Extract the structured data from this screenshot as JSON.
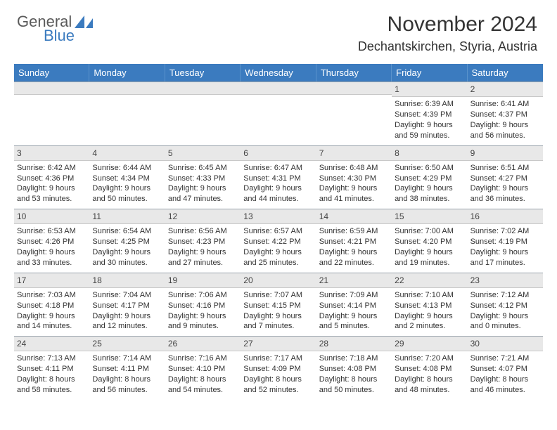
{
  "logo": {
    "main": "General",
    "sub": "Blue"
  },
  "title": "November 2024",
  "location": "Dechantskirchen, Styria, Austria",
  "brand_color": "#3b7bbf",
  "header_text_color": "#ffffff",
  "daynum_bg": "#e8e8e8",
  "week_border": "#9aa4ad",
  "dayNames": [
    "Sunday",
    "Monday",
    "Tuesday",
    "Wednesday",
    "Thursday",
    "Friday",
    "Saturday"
  ],
  "weeks": [
    [
      {
        "n": "",
        "sr": "",
        "ss": "",
        "dl": ""
      },
      {
        "n": "",
        "sr": "",
        "ss": "",
        "dl": ""
      },
      {
        "n": "",
        "sr": "",
        "ss": "",
        "dl": ""
      },
      {
        "n": "",
        "sr": "",
        "ss": "",
        "dl": ""
      },
      {
        "n": "",
        "sr": "",
        "ss": "",
        "dl": ""
      },
      {
        "n": "1",
        "sr": "Sunrise: 6:39 AM",
        "ss": "Sunset: 4:39 PM",
        "dl": "Daylight: 9 hours and 59 minutes."
      },
      {
        "n": "2",
        "sr": "Sunrise: 6:41 AM",
        "ss": "Sunset: 4:37 PM",
        "dl": "Daylight: 9 hours and 56 minutes."
      }
    ],
    [
      {
        "n": "3",
        "sr": "Sunrise: 6:42 AM",
        "ss": "Sunset: 4:36 PM",
        "dl": "Daylight: 9 hours and 53 minutes."
      },
      {
        "n": "4",
        "sr": "Sunrise: 6:44 AM",
        "ss": "Sunset: 4:34 PM",
        "dl": "Daylight: 9 hours and 50 minutes."
      },
      {
        "n": "5",
        "sr": "Sunrise: 6:45 AM",
        "ss": "Sunset: 4:33 PM",
        "dl": "Daylight: 9 hours and 47 minutes."
      },
      {
        "n": "6",
        "sr": "Sunrise: 6:47 AM",
        "ss": "Sunset: 4:31 PM",
        "dl": "Daylight: 9 hours and 44 minutes."
      },
      {
        "n": "7",
        "sr": "Sunrise: 6:48 AM",
        "ss": "Sunset: 4:30 PM",
        "dl": "Daylight: 9 hours and 41 minutes."
      },
      {
        "n": "8",
        "sr": "Sunrise: 6:50 AM",
        "ss": "Sunset: 4:29 PM",
        "dl": "Daylight: 9 hours and 38 minutes."
      },
      {
        "n": "9",
        "sr": "Sunrise: 6:51 AM",
        "ss": "Sunset: 4:27 PM",
        "dl": "Daylight: 9 hours and 36 minutes."
      }
    ],
    [
      {
        "n": "10",
        "sr": "Sunrise: 6:53 AM",
        "ss": "Sunset: 4:26 PM",
        "dl": "Daylight: 9 hours and 33 minutes."
      },
      {
        "n": "11",
        "sr": "Sunrise: 6:54 AM",
        "ss": "Sunset: 4:25 PM",
        "dl": "Daylight: 9 hours and 30 minutes."
      },
      {
        "n": "12",
        "sr": "Sunrise: 6:56 AM",
        "ss": "Sunset: 4:23 PM",
        "dl": "Daylight: 9 hours and 27 minutes."
      },
      {
        "n": "13",
        "sr": "Sunrise: 6:57 AM",
        "ss": "Sunset: 4:22 PM",
        "dl": "Daylight: 9 hours and 25 minutes."
      },
      {
        "n": "14",
        "sr": "Sunrise: 6:59 AM",
        "ss": "Sunset: 4:21 PM",
        "dl": "Daylight: 9 hours and 22 minutes."
      },
      {
        "n": "15",
        "sr": "Sunrise: 7:00 AM",
        "ss": "Sunset: 4:20 PM",
        "dl": "Daylight: 9 hours and 19 minutes."
      },
      {
        "n": "16",
        "sr": "Sunrise: 7:02 AM",
        "ss": "Sunset: 4:19 PM",
        "dl": "Daylight: 9 hours and 17 minutes."
      }
    ],
    [
      {
        "n": "17",
        "sr": "Sunrise: 7:03 AM",
        "ss": "Sunset: 4:18 PM",
        "dl": "Daylight: 9 hours and 14 minutes."
      },
      {
        "n": "18",
        "sr": "Sunrise: 7:04 AM",
        "ss": "Sunset: 4:17 PM",
        "dl": "Daylight: 9 hours and 12 minutes."
      },
      {
        "n": "19",
        "sr": "Sunrise: 7:06 AM",
        "ss": "Sunset: 4:16 PM",
        "dl": "Daylight: 9 hours and 9 minutes."
      },
      {
        "n": "20",
        "sr": "Sunrise: 7:07 AM",
        "ss": "Sunset: 4:15 PM",
        "dl": "Daylight: 9 hours and 7 minutes."
      },
      {
        "n": "21",
        "sr": "Sunrise: 7:09 AM",
        "ss": "Sunset: 4:14 PM",
        "dl": "Daylight: 9 hours and 5 minutes."
      },
      {
        "n": "22",
        "sr": "Sunrise: 7:10 AM",
        "ss": "Sunset: 4:13 PM",
        "dl": "Daylight: 9 hours and 2 minutes."
      },
      {
        "n": "23",
        "sr": "Sunrise: 7:12 AM",
        "ss": "Sunset: 4:12 PM",
        "dl": "Daylight: 9 hours and 0 minutes."
      }
    ],
    [
      {
        "n": "24",
        "sr": "Sunrise: 7:13 AM",
        "ss": "Sunset: 4:11 PM",
        "dl": "Daylight: 8 hours and 58 minutes."
      },
      {
        "n": "25",
        "sr": "Sunrise: 7:14 AM",
        "ss": "Sunset: 4:11 PM",
        "dl": "Daylight: 8 hours and 56 minutes."
      },
      {
        "n": "26",
        "sr": "Sunrise: 7:16 AM",
        "ss": "Sunset: 4:10 PM",
        "dl": "Daylight: 8 hours and 54 minutes."
      },
      {
        "n": "27",
        "sr": "Sunrise: 7:17 AM",
        "ss": "Sunset: 4:09 PM",
        "dl": "Daylight: 8 hours and 52 minutes."
      },
      {
        "n": "28",
        "sr": "Sunrise: 7:18 AM",
        "ss": "Sunset: 4:08 PM",
        "dl": "Daylight: 8 hours and 50 minutes."
      },
      {
        "n": "29",
        "sr": "Sunrise: 7:20 AM",
        "ss": "Sunset: 4:08 PM",
        "dl": "Daylight: 8 hours and 48 minutes."
      },
      {
        "n": "30",
        "sr": "Sunrise: 7:21 AM",
        "ss": "Sunset: 4:07 PM",
        "dl": "Daylight: 8 hours and 46 minutes."
      }
    ]
  ]
}
